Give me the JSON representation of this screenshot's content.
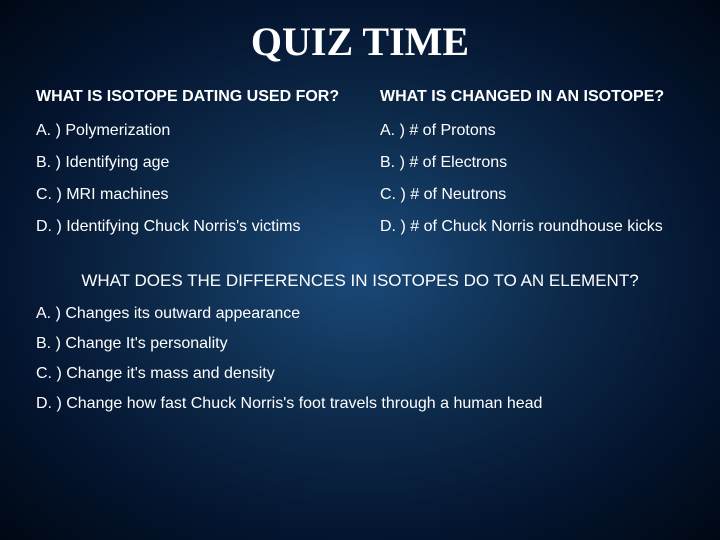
{
  "title": "QUIZ TIME",
  "title_fontsize": 40,
  "heading_fontsize": 16,
  "option_fontsize": 16,
  "q3_heading_fontsize": 17,
  "q3_option_fontsize": 16,
  "text_color": "#ffffff",
  "q1": {
    "heading": "WHAT IS ISOTOPE DATING USED FOR?",
    "options": [
      "A. ) Polymerization",
      "B. ) Identifying age",
      "C. ) MRI machines",
      "D. ) Identifying Chuck Norris's victims"
    ]
  },
  "q2": {
    "heading": "WHAT IS CHANGED IN AN ISOTOPE?",
    "options": [
      "A. ) # of Protons",
      "B. ) # of Electrons",
      "C. ) # of Neutrons",
      "D. ) # of Chuck Norris roundhouse kicks"
    ]
  },
  "q3": {
    "heading": "WHAT DOES THE DIFFERENCES IN ISOTOPES DO TO AN ELEMENT?",
    "options": [
      "A. ) Changes its outward appearance",
      "B. ) Change It's personality",
      "C. ) Change it's mass and density",
      "D. ) Change how fast Chuck Norris's foot travels through a human head"
    ]
  }
}
